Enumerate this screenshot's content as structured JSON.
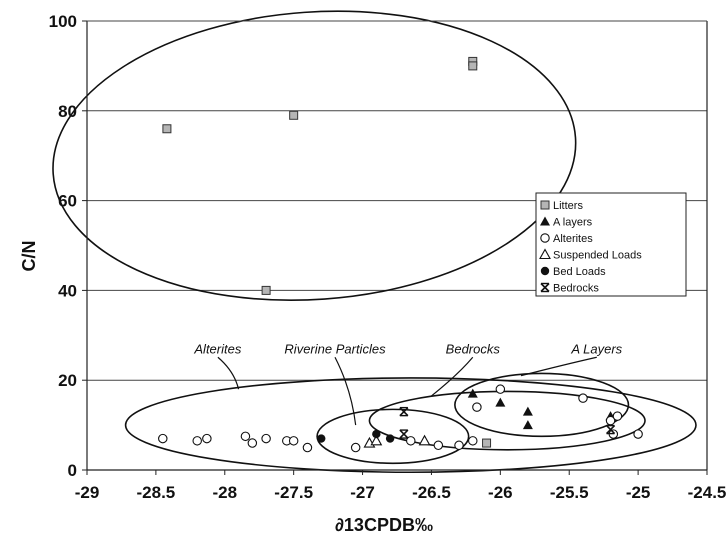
{
  "chart_data": {
    "type": "scatter",
    "xlabel": "∂13CPDB‰",
    "ylabel": "C/N",
    "xlim": [
      -29,
      -24.5
    ],
    "ylim": [
      0,
      100
    ],
    "xticks": [
      -29,
      -28.5,
      -28,
      -27.5,
      -27,
      -26.5,
      -26,
      -25.5,
      -25,
      -24.5
    ],
    "yticks": [
      0,
      20,
      40,
      60,
      80,
      100
    ],
    "xtick_labels": [
      "-29",
      "-28.5",
      "-28",
      "-27.5",
      "-27",
      "-26.5",
      "-26",
      "-25.5",
      "-25",
      "-24.5"
    ],
    "ytick_labels": [
      "0",
      "20",
      "40",
      "60",
      "80",
      "100"
    ],
    "grid": "horizontal",
    "legend_position": "right",
    "series": [
      {
        "name": "Litters",
        "marker": "square-gray",
        "points": [
          {
            "x": -28.42,
            "y": 76
          },
          {
            "x": -27.7,
            "y": 40
          },
          {
            "x": -27.5,
            "y": 79
          },
          {
            "x": -26.2,
            "y": 91
          },
          {
            "x": -26.2,
            "y": 90
          },
          {
            "x": -26.1,
            "y": 6
          }
        ]
      },
      {
        "name": "A layers",
        "marker": "triangle-filled",
        "points": [
          {
            "x": -26.2,
            "y": 17
          },
          {
            "x": -26.0,
            "y": 15
          },
          {
            "x": -25.8,
            "y": 13
          },
          {
            "x": -25.8,
            "y": 10
          },
          {
            "x": -25.2,
            "y": 12
          }
        ]
      },
      {
        "name": "Alterites",
        "marker": "circle-open",
        "points": [
          {
            "x": -28.45,
            "y": 7
          },
          {
            "x": -28.2,
            "y": 6.5
          },
          {
            "x": -28.13,
            "y": 7
          },
          {
            "x": -27.85,
            "y": 7.5
          },
          {
            "x": -27.8,
            "y": 6
          },
          {
            "x": -27.7,
            "y": 7
          },
          {
            "x": -27.55,
            "y": 6.5
          },
          {
            "x": -27.5,
            "y": 6.5
          },
          {
            "x": -27.4,
            "y": 5
          },
          {
            "x": -27.05,
            "y": 5
          },
          {
            "x": -26.65,
            "y": 6.5
          },
          {
            "x": -26.45,
            "y": 5.5
          },
          {
            "x": -26.3,
            "y": 5.5
          },
          {
            "x": -26.2,
            "y": 6.5
          },
          {
            "x": -26.17,
            "y": 14
          },
          {
            "x": -26.0,
            "y": 18
          },
          {
            "x": -25.4,
            "y": 16
          },
          {
            "x": -25.2,
            "y": 11
          },
          {
            "x": -25.18,
            "y": 8
          },
          {
            "x": -25.15,
            "y": 12
          },
          {
            "x": -25.0,
            "y": 8
          }
        ]
      },
      {
        "name": "Suspended Loads",
        "marker": "triangle-open",
        "points": [
          {
            "x": -26.95,
            "y": 6
          },
          {
            "x": -26.9,
            "y": 6.5
          },
          {
            "x": -26.55,
            "y": 6.5
          }
        ]
      },
      {
        "name": "Bed Loads",
        "marker": "circle-filled",
        "points": [
          {
            "x": -27.3,
            "y": 7
          },
          {
            "x": -26.9,
            "y": 8
          },
          {
            "x": -26.8,
            "y": 7
          }
        ]
      },
      {
        "name": "Bedrocks",
        "marker": "asterisk",
        "points": [
          {
            "x": -26.7,
            "y": 13
          },
          {
            "x": -26.7,
            "y": 8
          },
          {
            "x": -25.2,
            "y": 9
          }
        ]
      }
    ],
    "groups": [
      {
        "label": "",
        "center": {
          "x": -27.35,
          "y": 70
        },
        "rx": 1.9,
        "ry": 32,
        "rotate": -4
      },
      {
        "label": "Alterites",
        "center": {
          "x": -26.65,
          "y": 10
        },
        "rx": 2.07,
        "ry": 10.5,
        "label_at": {
          "x": -28.05,
          "y": 26
        },
        "pointer_to": {
          "x": -27.9,
          "y": 18
        }
      },
      {
        "label": "Riverine Particles",
        "center": {
          "x": -26.78,
          "y": 7.5
        },
        "rx": 0.55,
        "ry": 6,
        "label_at": {
          "x": -27.2,
          "y": 26
        },
        "pointer_to": {
          "x": -27.05,
          "y": 10
        }
      },
      {
        "label": "Bedrocks",
        "center": {
          "x": -25.95,
          "y": 11
        },
        "rx": 1.0,
        "ry": 6.5,
        "label_at": {
          "x": -26.2,
          "y": 26
        },
        "pointer_to": {
          "x": -26.5,
          "y": 16.5
        }
      },
      {
        "label": "A Layers",
        "center": {
          "x": -25.7,
          "y": 14.5
        },
        "rx": 0.63,
        "ry": 7,
        "label_at": {
          "x": -25.3,
          "y": 26
        },
        "pointer_to": {
          "x": -25.85,
          "y": 21
        }
      }
    ]
  }
}
